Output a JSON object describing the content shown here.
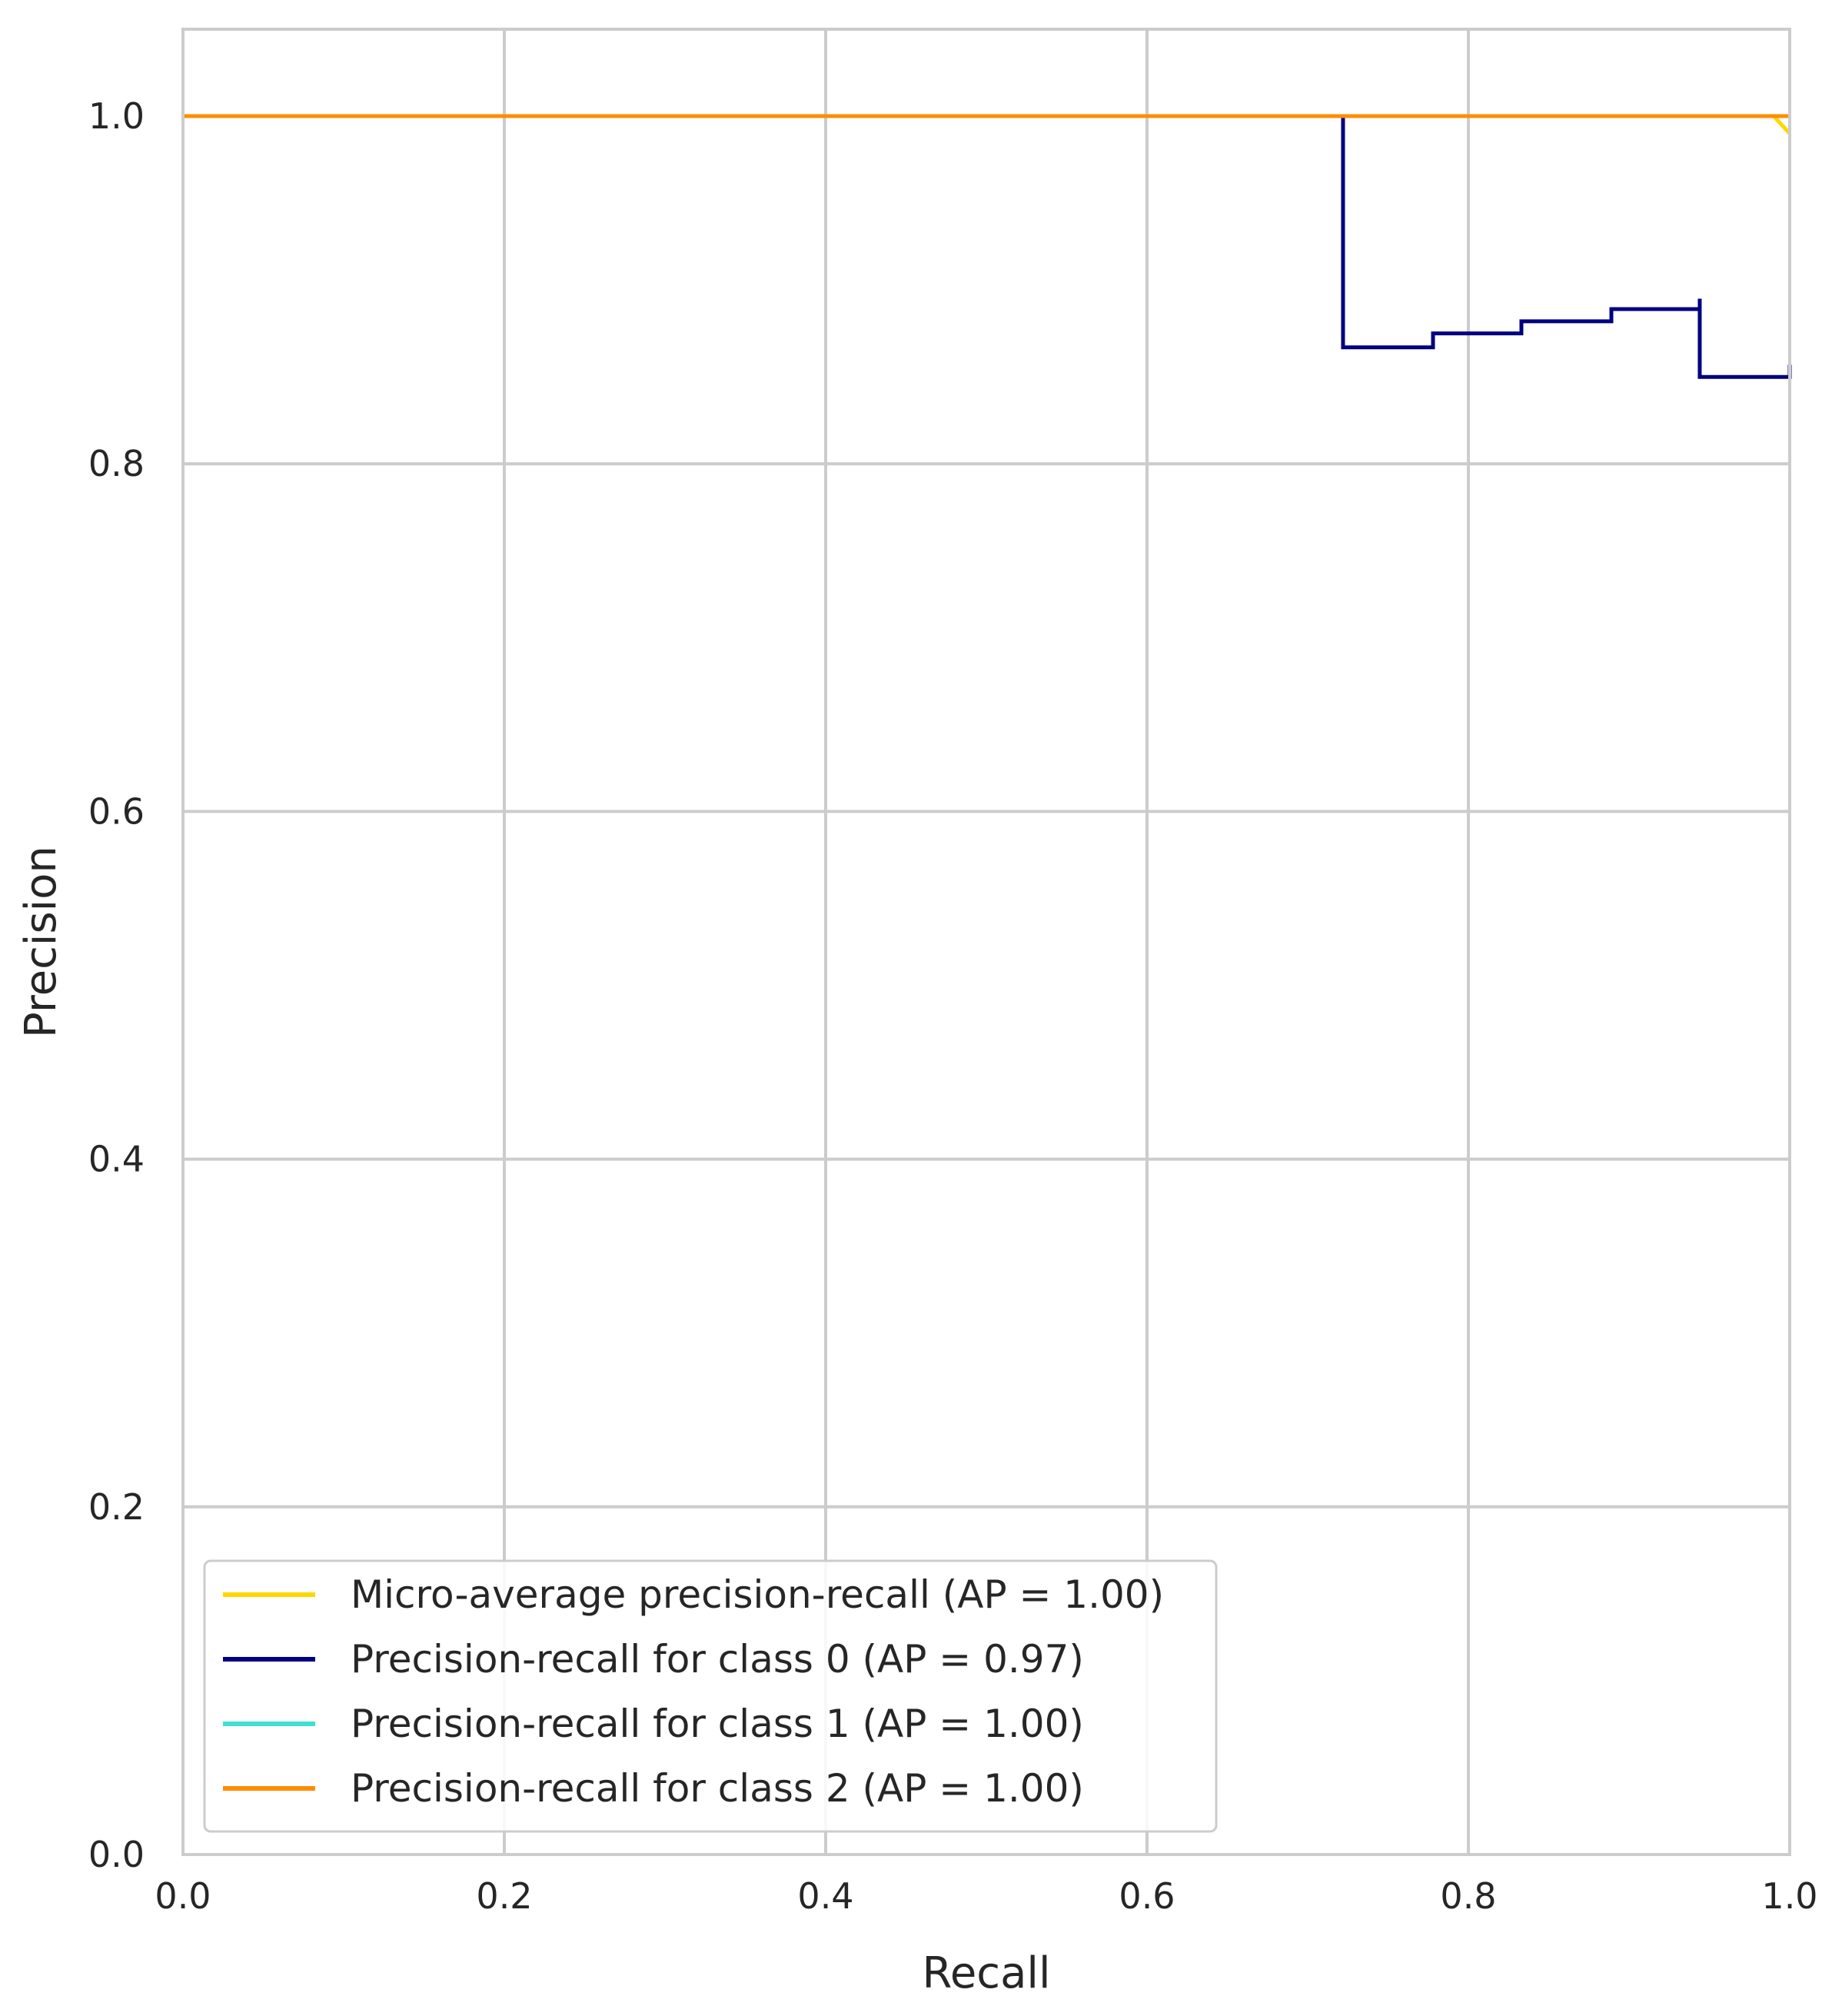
{
  "chart_data": {
    "type": "line",
    "title": "",
    "xlabel": "Recall",
    "ylabel": "Precision",
    "xlim": [
      0.0,
      1.0
    ],
    "ylim": [
      0.0,
      1.05
    ],
    "xticks": [
      "0.0",
      "0.2",
      "0.4",
      "0.6",
      "0.8",
      "1.0"
    ],
    "yticks": [
      "0.0",
      "0.2",
      "0.4",
      "0.6",
      "0.8",
      "1.0"
    ],
    "grid": true,
    "legend_position": "lower-left",
    "series": [
      {
        "name": "Micro-average precision-recall (AP = 1.00)",
        "color": "#FFD700",
        "step": false,
        "x": [
          0.0,
          0.99,
          1.0
        ],
        "y": [
          1.0,
          1.0,
          0.99
        ]
      },
      {
        "name": "Precision-recall for class 0 (AP = 0.97)",
        "color": "#000080",
        "step": true,
        "x": [
          0.0,
          0.722,
          0.722,
          0.778,
          0.833,
          0.889,
          0.944,
          0.944,
          1.0
        ],
        "y": [
          1.0,
          1.0,
          0.867,
          0.875,
          0.882,
          0.889,
          0.895,
          0.85,
          0.857
        ]
      },
      {
        "name": "Precision-recall for class 1 (AP = 1.00)",
        "color": "#40E0D0",
        "step": false,
        "x": [
          0.0,
          1.0
        ],
        "y": [
          1.0,
          1.0
        ]
      },
      {
        "name": "Precision-recall for class 2 (AP = 1.00)",
        "color": "#FF8C00",
        "step": false,
        "x": [
          0.0,
          1.0
        ],
        "y": [
          1.0,
          1.0
        ]
      }
    ]
  }
}
